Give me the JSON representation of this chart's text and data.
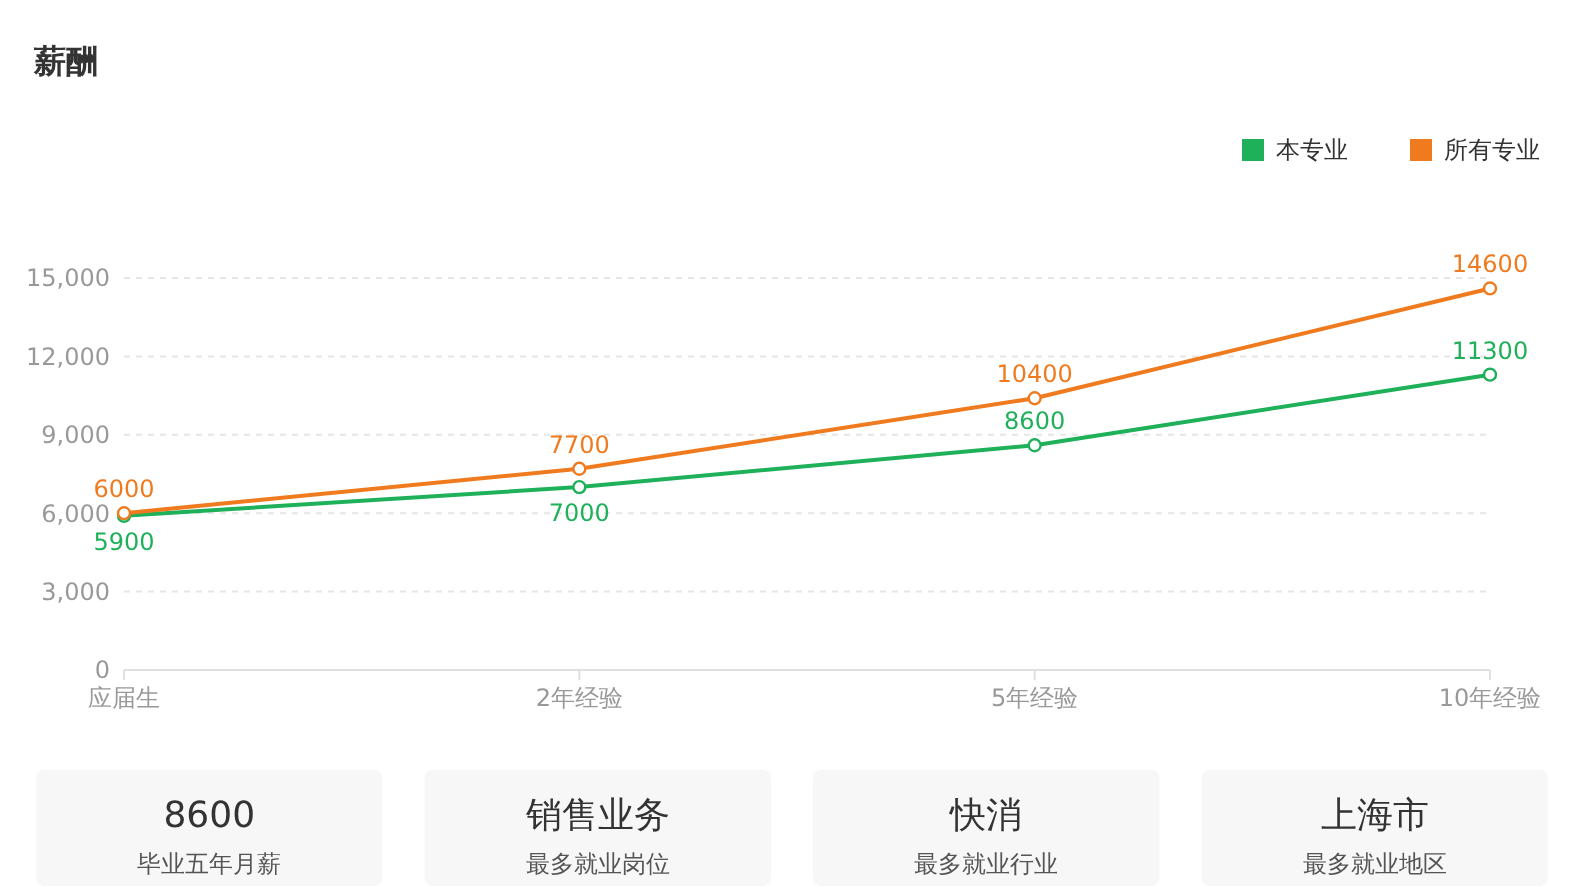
{
  "chart_data": [
    {
      "type": "line",
      "title": "薪酬",
      "categories": [
        "应届生",
        "2年经验",
        "5年经验",
        "10年经验"
      ],
      "series": [
        {
          "name": "本专业",
          "color": "#1fb05a",
          "values": [
            5900,
            7000,
            8600,
            11300
          ]
        },
        {
          "name": "所有专业",
          "color": "#f07a1e",
          "values": [
            6000,
            7700,
            10400,
            14600
          ]
        }
      ],
      "ylim": [
        0,
        15000
      ],
      "yticks": [
        0,
        {
          "value": 3000,
          "label": "3,000"
        },
        {
          "value": 6000,
          "label": "6,000"
        },
        {
          "value": 9000,
          "label": "9,000"
        },
        {
          "value": 12000,
          "label": "12,000"
        },
        {
          "value": 15000,
          "label": "15,000"
        }
      ],
      "grid": "y",
      "legend": "top right",
      "marker": "circle",
      "line_style": "solid",
      "data_labels": true
    },
    {
      "type": "other",
      "annotations": [
        "8600",
        "毕业五年月薪",
        "销售业务",
        "最多就业岗位",
        "快消",
        "最多就业行业",
        "上海市",
        "最多就业地区"
      ]
    }
  ]
}
